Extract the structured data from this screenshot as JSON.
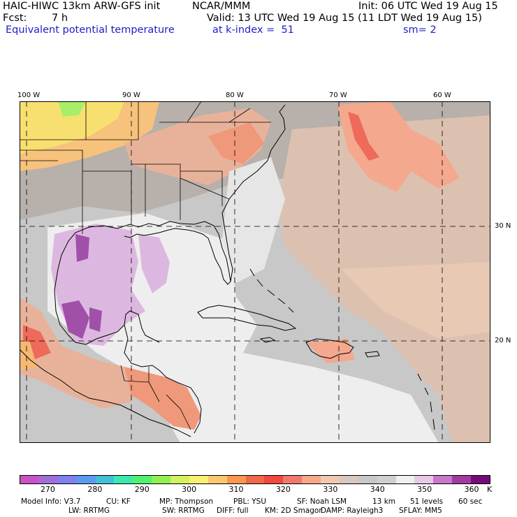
{
  "header": {
    "model": "HAIC-HIWC 13km ARW-GFS init",
    "org": "NCAR/MMM",
    "init": "Init: 06 UTC Wed 19 Aug 15",
    "fcst_label": "Fcst:",
    "fcst_value": "7 h",
    "valid": "Valid: 13 UTC Wed 19 Aug 15 (11 LDT Wed 19 Aug 15)",
    "field": "Equivalent potential temperature",
    "level": "at k-index =  51",
    "smooth": "sm= 2"
  },
  "map": {
    "lon_labels": [
      "100 W",
      "90 W",
      "80 W",
      "70 W",
      "60 W"
    ],
    "lat_labels": [
      "30 N",
      "20 N"
    ]
  },
  "colorbar": {
    "colors": [
      "#c853c8",
      "#a070d8",
      "#8080ee",
      "#5a9bf0",
      "#42c0d8",
      "#3ce8b0",
      "#50f070",
      "#90f050",
      "#d4f060",
      "#f8f070",
      "#f8c870",
      "#f89850",
      "#f06848",
      "#f04840",
      "#f07870",
      "#f8a888",
      "#f0c8b0",
      "#d8c8c0",
      "#c8c8c8",
      "#d0d0d0",
      "#f0f0f0",
      "#e8c8e8",
      "#c878c8",
      "#a03ca0",
      "#780a78"
    ],
    "ticks": [
      "270",
      "280",
      "290",
      "300",
      "310",
      "320",
      "330",
      "340",
      "350",
      "360"
    ],
    "unit": "K"
  },
  "footer": {
    "line1": [
      "Model Info: V3.7",
      "CU: KF",
      "MP: Thompson",
      "PBL: YSU",
      "SF: Noah LSM",
      "13 km",
      "51 levels",
      "60 sec"
    ],
    "line2": [
      "LW: RRTMG",
      "SW: RRTMG",
      "DIFF: full",
      "KM: 2D Smagor",
      "DAMP: Rayleigh3",
      "SFLAY: MM5"
    ]
  }
}
